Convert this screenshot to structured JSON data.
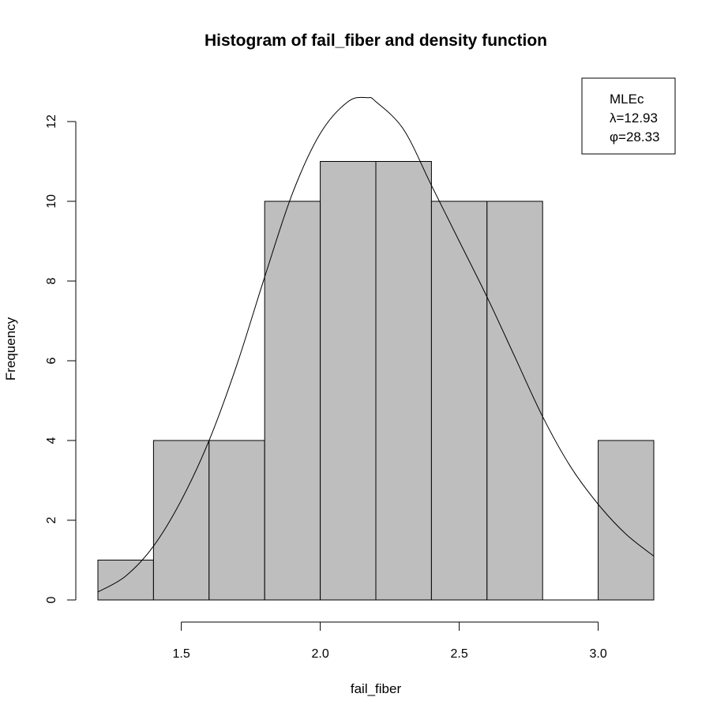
{
  "chart_data": {
    "type": "bar",
    "title": "Histogram of fail_fiber and density function",
    "xlabel": "fail_fiber",
    "ylabel": "Frequency",
    "bins": [
      {
        "from": 1.2,
        "to": 1.4,
        "count": 1
      },
      {
        "from": 1.4,
        "to": 1.6,
        "count": 4
      },
      {
        "from": 1.6,
        "to": 1.8,
        "count": 4
      },
      {
        "from": 1.8,
        "to": 2.0,
        "count": 10
      },
      {
        "from": 2.0,
        "to": 2.2,
        "count": 11
      },
      {
        "from": 2.2,
        "to": 2.4,
        "count": 11
      },
      {
        "from": 2.4,
        "to": 2.6,
        "count": 10
      },
      {
        "from": 2.6,
        "to": 2.8,
        "count": 10
      },
      {
        "from": 2.8,
        "to": 3.0,
        "count": 0
      },
      {
        "from": 3.0,
        "to": 3.2,
        "count": 4
      }
    ],
    "xlim": [
      1.2,
      3.2
    ],
    "ylim": [
      0,
      12.6
    ],
    "x_ticks": [
      {
        "value": 1.5,
        "label": "1.5"
      },
      {
        "value": 2.0,
        "label": "2.0"
      },
      {
        "value": 2.5,
        "label": "2.5"
      },
      {
        "value": 3.0,
        "label": "3.0"
      }
    ],
    "y_ticks": [
      {
        "value": 0,
        "label": "0"
      },
      {
        "value": 2,
        "label": "2"
      },
      {
        "value": 4,
        "label": "4"
      },
      {
        "value": 6,
        "label": "6"
      },
      {
        "value": 8,
        "label": "8"
      },
      {
        "value": 10,
        "label": "10"
      },
      {
        "value": 12,
        "label": "12"
      }
    ],
    "density_curve": {
      "x": [
        1.2,
        1.3,
        1.4,
        1.5,
        1.6,
        1.7,
        1.8,
        1.9,
        2.0,
        2.1,
        2.17,
        2.2,
        2.3,
        2.4,
        2.5,
        2.6,
        2.7,
        2.8,
        2.9,
        3.0,
        3.1,
        3.2
      ],
      "y": [
        0.2,
        0.6,
        1.35,
        2.5,
        4.0,
        5.9,
        8.1,
        10.2,
        11.7,
        12.5,
        12.6,
        12.5,
        11.8,
        10.4,
        9.0,
        7.6,
        6.1,
        4.6,
        3.35,
        2.4,
        1.65,
        1.1
      ]
    },
    "legend": {
      "position": "top-right",
      "lines": [
        "MLEc",
        "λ=12.93",
        "φ=28.33"
      ]
    },
    "colors": {
      "bar_fill": "#bebebe",
      "stroke": "#000000"
    }
  }
}
